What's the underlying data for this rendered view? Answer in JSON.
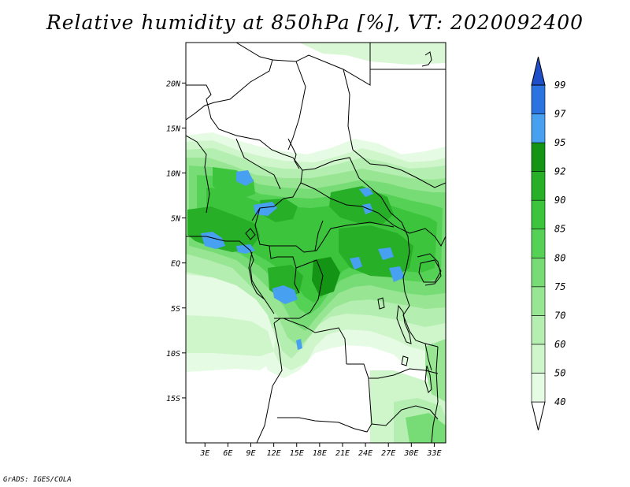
{
  "title": "Relative humidity at 850hPa [%], VT: 2020092400",
  "credit": "GrADS: IGES/COLA",
  "map": {
    "lat_labels": [
      "20N",
      "15N",
      "10N",
      "5N",
      "EQ",
      "5S",
      "10S",
      "15S"
    ],
    "lat_values": [
      20,
      15,
      10,
      5,
      0,
      -5,
      -10,
      -15
    ],
    "lon_labels": [
      "3E",
      "6E",
      "9E",
      "12E",
      "15E",
      "18E",
      "21E",
      "24E",
      "27E",
      "30E",
      "33E"
    ],
    "lon_values": [
      3,
      6,
      9,
      12,
      15,
      18,
      21,
      24,
      27,
      30,
      33
    ],
    "lon_range": [
      0.5,
      34.5
    ],
    "lat_range": [
      -20,
      24.5
    ]
  },
  "colorbar": {
    "levels": [
      "40",
      "50",
      "60",
      "70",
      "75",
      "80",
      "85",
      "90",
      "92",
      "95",
      "97",
      "99"
    ],
    "colors": [
      "#ffffff",
      "#e6fbe3",
      "#cff5cb",
      "#b4eeb0",
      "#98e694",
      "#78dc76",
      "#55d255",
      "#3cc43c",
      "#27af27",
      "#149414",
      "#47a0f0",
      "#2b74e0",
      "#1f4fc8"
    ]
  }
}
